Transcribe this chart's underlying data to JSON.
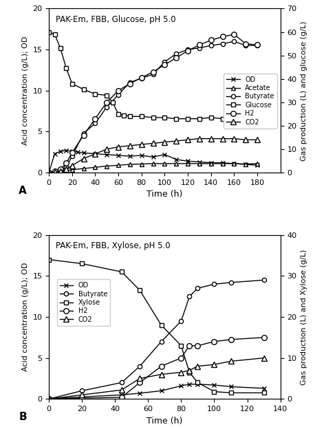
{
  "panel_A": {
    "title": "PAK-Em, FBB, Glucose, pH 5.0",
    "xlabel": "Time (h)",
    "ylabel_left": "Acid concentration (g/L); OD",
    "ylabel_right": "Gas production (L) and glucose (g/L)",
    "ylim_left": [
      0,
      20
    ],
    "ylim_right": [
      0,
      70
    ],
    "xlim": [
      0,
      200
    ],
    "xticks": [
      0,
      20,
      40,
      60,
      80,
      100,
      120,
      140,
      160,
      180
    ],
    "yticks_left": [
      0,
      5,
      10,
      15,
      20
    ],
    "yticks_right": [
      0,
      10,
      20,
      30,
      40,
      50,
      60,
      70
    ],
    "OD": {
      "x": [
        0,
        5,
        10,
        15,
        20,
        25,
        30,
        40,
        50,
        60,
        70,
        80,
        90,
        100,
        110,
        120,
        130,
        140,
        150,
        160,
        170,
        180
      ],
      "y": [
        0,
        2.3,
        2.6,
        2.7,
        2.6,
        2.5,
        2.4,
        2.3,
        2.2,
        2.1,
        2.0,
        2.1,
        1.9,
        2.2,
        1.6,
        1.4,
        1.3,
        1.2,
        1.2,
        1.1,
        1.0,
        0.9
      ]
    },
    "Acetate": {
      "x": [
        0,
        5,
        10,
        15,
        20,
        30,
        40,
        50,
        60,
        70,
        80,
        90,
        100,
        110,
        120,
        130,
        140,
        150,
        160,
        170,
        180
      ],
      "y": [
        0,
        0.05,
        0.15,
        0.25,
        0.35,
        0.5,
        0.65,
        0.8,
        0.9,
        1.0,
        1.05,
        1.1,
        1.1,
        1.1,
        1.1,
        1.1,
        1.1,
        1.1,
        1.1,
        1.05,
        1.1
      ]
    },
    "Butyrate": {
      "x": [
        0,
        5,
        10,
        15,
        20,
        30,
        40,
        50,
        60,
        70,
        80,
        90,
        100,
        110,
        120,
        130,
        140,
        150,
        160,
        170,
        180
      ],
      "y": [
        0,
        0.1,
        0.3,
        0.7,
        2.0,
        4.8,
        6.0,
        8.0,
        9.5,
        11.0,
        11.5,
        12.0,
        13.5,
        14.5,
        15.0,
        15.2,
        15.5,
        15.7,
        16.0,
        15.5,
        15.5
      ]
    },
    "Glucose_right": {
      "x": [
        0,
        5,
        10,
        15,
        20,
        30,
        40,
        50,
        55,
        60,
        65,
        70,
        80,
        90,
        100,
        110,
        120,
        130,
        140,
        150,
        160,
        170,
        180
      ],
      "y": [
        60.0,
        59.0,
        53.0,
        44.5,
        38.0,
        35.5,
        33.5,
        33.0,
        30.0,
        25.0,
        24.5,
        24.0,
        24.0,
        23.5,
        23.5,
        23.0,
        23.0,
        23.0,
        23.5,
        23.0,
        23.5,
        23.0,
        23.5
      ]
    },
    "H2_right": {
      "x": [
        0,
        5,
        10,
        15,
        20,
        30,
        40,
        50,
        60,
        70,
        80,
        90,
        100,
        110,
        120,
        130,
        140,
        150,
        160,
        170,
        180
      ],
      "y": [
        0,
        0.5,
        1.5,
        4.0,
        8.5,
        16.0,
        23.0,
        30.0,
        35.0,
        38.0,
        40.5,
        43.0,
        46.0,
        49.0,
        52.0,
        54.5,
        56.5,
        58.0,
        59.0,
        55.0,
        54.5
      ]
    },
    "CO2_right": {
      "x": [
        0,
        5,
        10,
        15,
        20,
        30,
        40,
        50,
        60,
        70,
        80,
        90,
        100,
        110,
        120,
        130,
        140,
        150,
        160,
        170,
        180
      ],
      "y": [
        0,
        0.2,
        0.6,
        1.5,
        3.0,
        6.0,
        8.0,
        10.0,
        11.0,
        11.5,
        12.0,
        12.5,
        13.0,
        13.5,
        14.0,
        14.5,
        14.5,
        14.5,
        14.5,
        14.0,
        14.0
      ]
    }
  },
  "panel_B": {
    "title": "PAK-Em, FBB, Xylose, pH 5.0",
    "xlabel": "Time (h)",
    "ylabel_left": "Acid concentration (g/L); OD",
    "ylabel_right": "Gas production (L) and Xylose (g/L)",
    "ylim_left": [
      0,
      20
    ],
    "ylim_right": [
      0,
      40
    ],
    "xlim": [
      0,
      140
    ],
    "xticks": [
      0,
      20,
      40,
      60,
      80,
      100,
      120,
      140
    ],
    "yticks_left": [
      0,
      5,
      10,
      15,
      20
    ],
    "yticks_right": [
      0,
      10,
      20,
      30,
      40
    ],
    "OD": {
      "x": [
        0,
        20,
        44,
        55,
        68,
        80,
        85,
        90,
        100,
        110,
        130
      ],
      "y": [
        0,
        0.25,
        0.5,
        0.7,
        1.0,
        1.6,
        1.8,
        1.8,
        1.7,
        1.5,
        1.3
      ]
    },
    "Butyrate": {
      "x": [
        0,
        20,
        44,
        55,
        68,
        80,
        85,
        90,
        100,
        110,
        130
      ],
      "y": [
        0,
        1.0,
        2.0,
        4.0,
        7.0,
        9.5,
        12.5,
        13.5,
        14.0,
        14.2,
        14.5
      ]
    },
    "Xylose_right": {
      "x": [
        0,
        20,
        44,
        55,
        68,
        80,
        85,
        90,
        100,
        110,
        130
      ],
      "y": [
        34.0,
        33.0,
        31.0,
        26.5,
        18.0,
        13.0,
        6.5,
        4.0,
        1.8,
        1.5,
        1.5
      ]
    },
    "H2_right": {
      "x": [
        0,
        20,
        44,
        55,
        68,
        80,
        85,
        90,
        100,
        110,
        130
      ],
      "y": [
        0,
        0.2,
        0.4,
        4.0,
        8.0,
        10.0,
        13.0,
        13.0,
        14.0,
        14.5,
        15.0
      ]
    },
    "CO2_right": {
      "x": [
        0,
        20,
        44,
        55,
        68,
        80,
        85,
        90,
        100,
        110,
        130
      ],
      "y": [
        0,
        1.0,
        2.2,
        5.0,
        6.0,
        6.5,
        7.0,
        8.0,
        8.4,
        9.2,
        10.0
      ]
    }
  }
}
